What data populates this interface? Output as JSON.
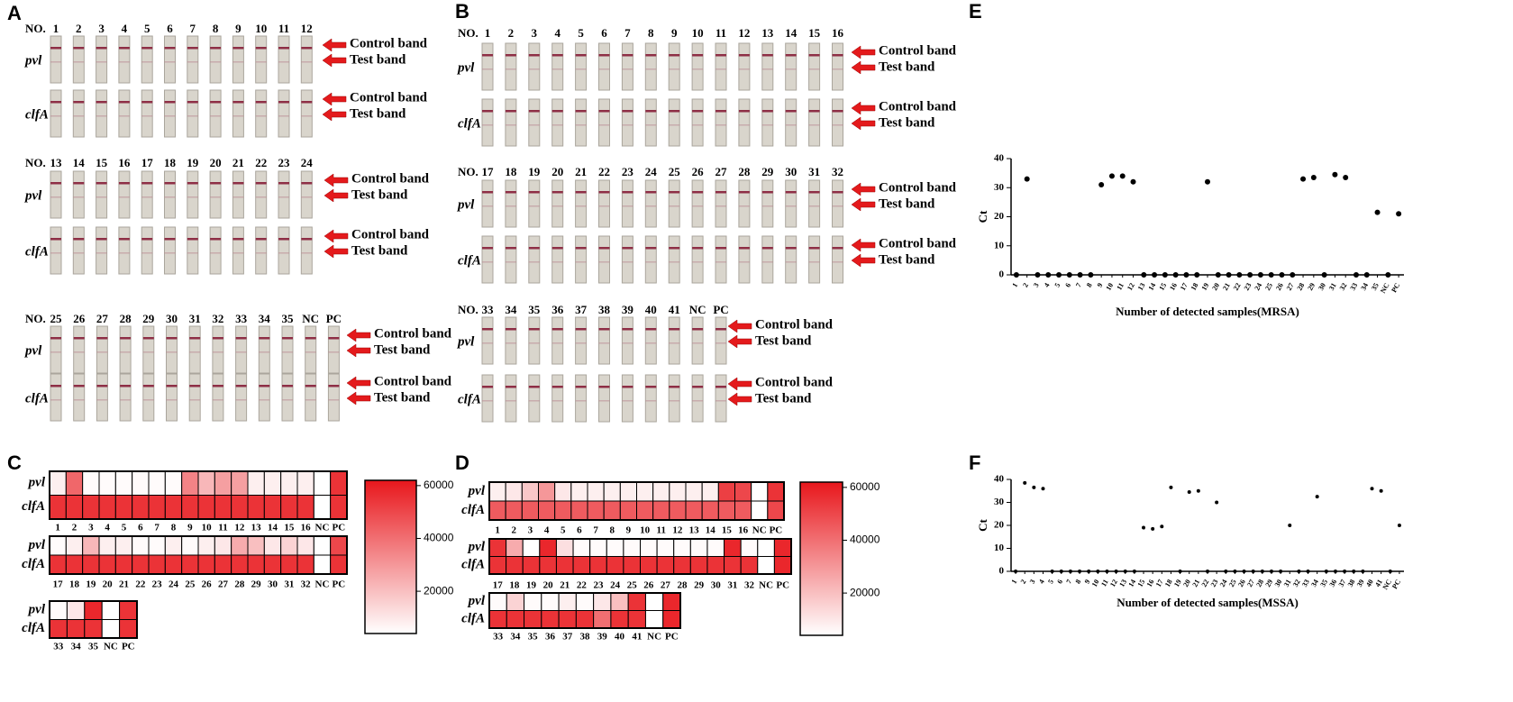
{
  "strip_panels": [
    {
      "panel": "A",
      "number_prefix": "NO.",
      "genes": [
        "pvl",
        "clfA"
      ],
      "control_label": "Control band",
      "test_label": "Test band",
      "rows": [
        {
          "samples": [
            "1",
            "2",
            "3",
            "4",
            "5",
            "6",
            "7",
            "8",
            "9",
            "10",
            "11",
            "12"
          ]
        },
        {
          "samples": [
            "13",
            "14",
            "15",
            "16",
            "17",
            "18",
            "19",
            "20",
            "21",
            "22",
            "23",
            "24"
          ]
        },
        {
          "samples": [
            "25",
            "26",
            "27",
            "28",
            "29",
            "30",
            "31",
            "32",
            "33",
            "34",
            "35",
            "NC",
            "PC"
          ]
        }
      ]
    },
    {
      "panel": "B",
      "number_prefix": "NO.",
      "genes": [
        "pvl",
        "clfA"
      ],
      "control_label": "Control band",
      "test_label": "Test band",
      "rows": [
        {
          "samples": [
            "1",
            "2",
            "3",
            "4",
            "5",
            "6",
            "7",
            "8",
            "9",
            "10",
            "11",
            "12",
            "13",
            "14",
            "15",
            "16"
          ]
        },
        {
          "samples": [
            "17",
            "18",
            "19",
            "20",
            "21",
            "22",
            "23",
            "24",
            "25",
            "26",
            "27",
            "28",
            "29",
            "30",
            "31",
            "32"
          ]
        },
        {
          "samples": [
            "33",
            "34",
            "35",
            "36",
            "37",
            "38",
            "39",
            "40",
            "41",
            "NC",
            "PC"
          ]
        }
      ]
    }
  ],
  "chart_data": [
    {
      "type": "heatmap",
      "panel": "C",
      "rows": [
        "pvl",
        "clfA"
      ],
      "clim": [
        4000,
        62000
      ],
      "cticks": [
        20000,
        40000,
        60000
      ],
      "color": "#e8171c",
      "blocks": [
        {
          "columns": [
            "1",
            "2",
            "3",
            "4",
            "5",
            "6",
            "7",
            "8",
            "9",
            "10",
            "11",
            "12",
            "13",
            "14",
            "15",
            "16",
            "NC",
            "PC"
          ],
          "values": [
            [
              8000,
              42000,
              5000,
              5000,
              5000,
              5000,
              5000,
              5000,
              35000,
              22000,
              28000,
              28000,
              8000,
              8000,
              8000,
              8000,
              4000,
              55000
            ],
            [
              55000,
              55000,
              55000,
              55000,
              55000,
              55000,
              55000,
              55000,
              55000,
              55000,
              55000,
              55000,
              55000,
              55000,
              55000,
              55000,
              4000,
              55000
            ]
          ]
        },
        {
          "columns": [
            "17",
            "18",
            "19",
            "20",
            "21",
            "22",
            "23",
            "24",
            "25",
            "26",
            "27",
            "28",
            "29",
            "30",
            "31",
            "32",
            "NC",
            "PC"
          ],
          "values": [
            [
              5000,
              8000,
              22000,
              8000,
              8000,
              5000,
              5000,
              8000,
              5000,
              8000,
              10000,
              25000,
              20000,
              10000,
              15000,
              10000,
              4000,
              50000
            ],
            [
              55000,
              55000,
              55000,
              55000,
              55000,
              55000,
              55000,
              55000,
              55000,
              55000,
              55000,
              55000,
              55000,
              55000,
              55000,
              55000,
              4000,
              55000
            ]
          ]
        },
        {
          "columns": [
            "33",
            "34",
            "35",
            "NC",
            "PC"
          ],
          "values": [
            [
              5000,
              10000,
              58000,
              4000,
              55000
            ],
            [
              55000,
              55000,
              55000,
              4000,
              55000
            ]
          ]
        }
      ]
    },
    {
      "type": "heatmap",
      "panel": "D",
      "rows": [
        "pvl",
        "clfA"
      ],
      "clim": [
        4000,
        62000
      ],
      "cticks": [
        20000,
        40000,
        60000
      ],
      "color": "#e8171c",
      "blocks": [
        {
          "columns": [
            "1",
            "2",
            "3",
            "4",
            "5",
            "6",
            "7",
            "8",
            "9",
            "10",
            "11",
            "12",
            "13",
            "14",
            "15",
            "16",
            "NC",
            "PC"
          ],
          "values": [
            [
              8000,
              10000,
              18000,
              30000,
              10000,
              8000,
              8000,
              8000,
              8000,
              8000,
              8000,
              8000,
              8000,
              8000,
              52000,
              50000,
              4000,
              55000
            ],
            [
              45000,
              45000,
              45000,
              45000,
              45000,
              45000,
              45000,
              45000,
              45000,
              45000,
              45000,
              45000,
              45000,
              45000,
              45000,
              45000,
              4000,
              50000
            ]
          ]
        },
        {
          "columns": [
            "17",
            "18",
            "19",
            "20",
            "21",
            "22",
            "23",
            "24",
            "25",
            "26",
            "27",
            "28",
            "29",
            "30",
            "31",
            "32",
            "NC",
            "PC"
          ],
          "values": [
            [
              55000,
              25000,
              4000,
              58000,
              12000,
              5000,
              5000,
              5000,
              5000,
              5000,
              5000,
              5000,
              5000,
              5000,
              58000,
              5000,
              4000,
              58000
            ],
            [
              55000,
              55000,
              55000,
              55000,
              55000,
              55000,
              55000,
              55000,
              55000,
              55000,
              55000,
              55000,
              55000,
              55000,
              55000,
              55000,
              4000,
              58000
            ]
          ]
        },
        {
          "columns": [
            "33",
            "34",
            "35",
            "36",
            "37",
            "38",
            "39",
            "40",
            "41",
            "NC",
            "PC"
          ],
          "values": [
            [
              5000,
              15000,
              5000,
              5000,
              8000,
              5000,
              10000,
              20000,
              55000,
              4000,
              58000
            ],
            [
              55000,
              55000,
              55000,
              55000,
              55000,
              55000,
              40000,
              55000,
              55000,
              4000,
              58000
            ]
          ]
        }
      ]
    },
    {
      "type": "scatter",
      "panel": "E",
      "color": "#000000",
      "ylabel": "Ct",
      "xlabel": "Number of detected samples(MRSA)",
      "ylim": [
        0,
        40
      ],
      "yticks": [
        0,
        10,
        20,
        30,
        40
      ],
      "categories": [
        "1",
        "2",
        "3",
        "4",
        "5",
        "6",
        "7",
        "8",
        "9",
        "10",
        "11",
        "12",
        "13",
        "14",
        "15",
        "16",
        "17",
        "18",
        "19",
        "20",
        "21",
        "22",
        "23",
        "24",
        "25",
        "26",
        "27",
        "28",
        "29",
        "30",
        "31",
        "32",
        "33",
        "34",
        "35",
        "NC",
        "PC"
      ],
      "values": [
        0,
        33,
        0,
        0,
        0,
        0,
        0,
        0,
        31,
        34,
        34,
        32,
        0,
        0,
        0,
        0,
        0,
        0,
        32,
        0,
        0,
        0,
        0,
        0,
        0,
        0,
        0,
        33,
        33.5,
        0,
        34.5,
        33.5,
        0,
        0,
        21.5,
        0,
        21
      ]
    },
    {
      "type": "scatter",
      "panel": "F",
      "color": "#000000",
      "ylabel": "Ct",
      "xlabel": "Number of detected samples(MSSA)",
      "ylim": [
        0,
        40
      ],
      "yticks": [
        0,
        10,
        20,
        30,
        40
      ],
      "categories": [
        "1",
        "2",
        "3",
        "4",
        "5",
        "6",
        "7",
        "8",
        "9",
        "10",
        "11",
        "12",
        "13",
        "14",
        "15",
        "16",
        "17",
        "18",
        "19",
        "20",
        "21",
        "22",
        "23",
        "24",
        "25",
        "26",
        "27",
        "28",
        "29",
        "30",
        "31",
        "32",
        "33",
        "34",
        "35",
        "36",
        "37",
        "38",
        "39",
        "40",
        "41",
        "NC",
        "PC"
      ],
      "values": [
        0,
        38.5,
        36.5,
        36,
        0,
        0,
        0,
        0,
        0,
        0,
        0,
        0,
        0,
        0,
        19,
        18.5,
        19.5,
        36.5,
        0,
        34.5,
        35,
        0,
        30,
        0,
        0,
        0,
        0,
        0,
        0,
        0,
        20,
        0,
        0,
        32.5,
        0,
        0,
        0,
        0,
        0,
        36,
        35,
        0,
        20
      ]
    }
  ]
}
